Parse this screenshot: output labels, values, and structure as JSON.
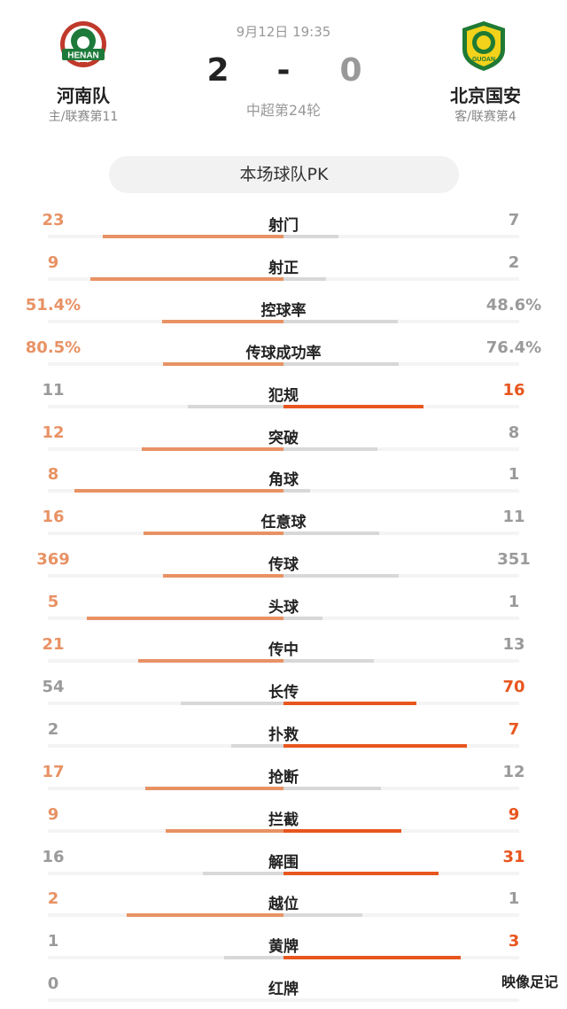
{
  "match": {
    "time": "9月12日 19:35",
    "league_round": "中超第24轮",
    "home": {
      "name": "河南队",
      "sub": "主/联赛第11",
      "score": "2",
      "logo_text": "HENAN"
    },
    "away": {
      "name": "北京国安",
      "sub": "客/联赛第4",
      "score": "0",
      "logo_text": "GUOAN"
    },
    "dash": "-"
  },
  "section_title": "本场球队PK",
  "colors": {
    "leader_light": "#e89264",
    "leader_strong": "#e8561e",
    "neutral": "#9a9a9a",
    "bar_gray": "#d8d8d8"
  },
  "stats": [
    {
      "label": "射门",
      "home": "23",
      "away": "7",
      "home_val": 23,
      "away_val": 7,
      "winner": "home"
    },
    {
      "label": "射正",
      "home": "9",
      "away": "2",
      "home_val": 9,
      "away_val": 2,
      "winner": "home"
    },
    {
      "label": "控球率",
      "home": "51.4%",
      "away": "48.6%",
      "home_val": 51.4,
      "away_val": 48.6,
      "winner": "home"
    },
    {
      "label": "传球成功率",
      "home": "80.5%",
      "away": "76.4%",
      "home_val": 80.5,
      "away_val": 76.4,
      "winner": "home"
    },
    {
      "label": "犯规",
      "home": "11",
      "away": "16",
      "home_val": 11,
      "away_val": 16,
      "winner": "away"
    },
    {
      "label": "突破",
      "home": "12",
      "away": "8",
      "home_val": 12,
      "away_val": 8,
      "winner": "home"
    },
    {
      "label": "角球",
      "home": "8",
      "away": "1",
      "home_val": 8,
      "away_val": 1,
      "winner": "home"
    },
    {
      "label": "任意球",
      "home": "16",
      "away": "11",
      "home_val": 16,
      "away_val": 11,
      "winner": "home"
    },
    {
      "label": "传球",
      "home": "369",
      "away": "351",
      "home_val": 369,
      "away_val": 351,
      "winner": "home"
    },
    {
      "label": "头球",
      "home": "5",
      "away": "1",
      "home_val": 5,
      "away_val": 1,
      "winner": "home"
    },
    {
      "label": "传中",
      "home": "21",
      "away": "13",
      "home_val": 21,
      "away_val": 13,
      "winner": "home"
    },
    {
      "label": "长传",
      "home": "54",
      "away": "70",
      "home_val": 54,
      "away_val": 70,
      "winner": "away"
    },
    {
      "label": "扑救",
      "home": "2",
      "away": "7",
      "home_val": 2,
      "away_val": 7,
      "winner": "away"
    },
    {
      "label": "抢断",
      "home": "17",
      "away": "12",
      "home_val": 17,
      "away_val": 12,
      "winner": "home"
    },
    {
      "label": "拦截",
      "home": "9",
      "away": "9",
      "home_val": 9,
      "away_val": 9,
      "winner": "tie"
    },
    {
      "label": "解围",
      "home": "16",
      "away": "31",
      "home_val": 16,
      "away_val": 31,
      "winner": "away"
    },
    {
      "label": "越位",
      "home": "2",
      "away": "1",
      "home_val": 2,
      "away_val": 1,
      "winner": "home"
    },
    {
      "label": "黄牌",
      "home": "1",
      "away": "3",
      "home_val": 1,
      "away_val": 3,
      "winner": "away"
    },
    {
      "label": "红牌",
      "home": "0",
      "away": "",
      "home_val": 0,
      "away_val": 0,
      "winner": "none"
    }
  ],
  "watermark": "映像足记"
}
